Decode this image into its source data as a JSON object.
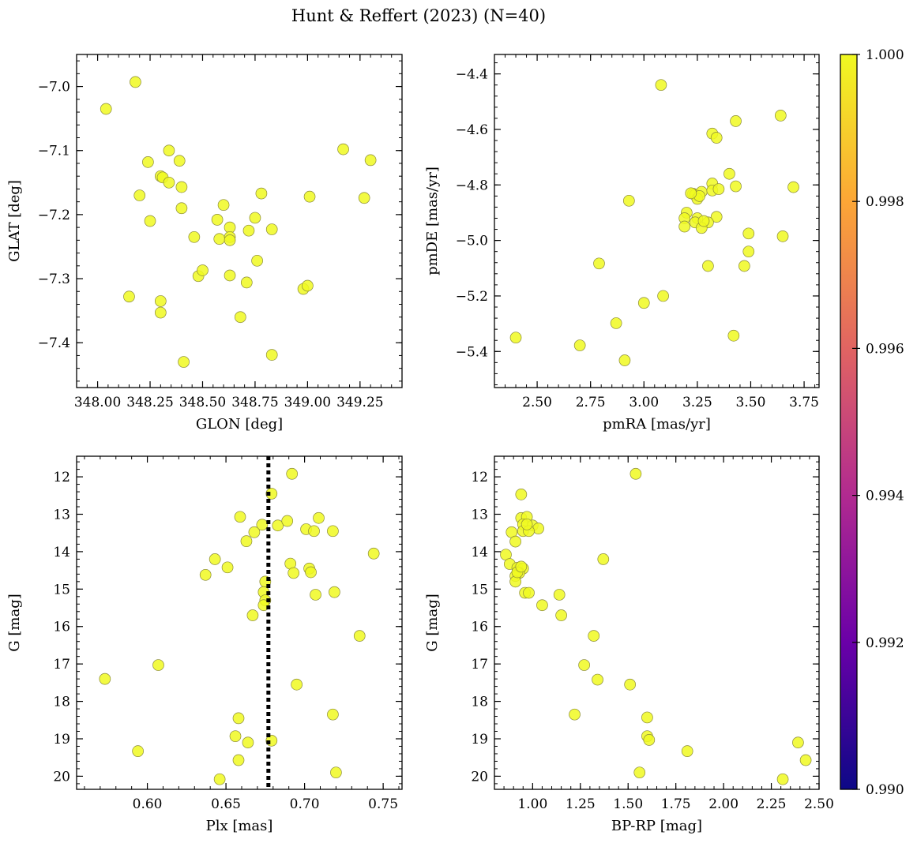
{
  "figure": {
    "title": "Hunt & Reffert (2023) (N=40)"
  },
  "colorbar": {
    "min": 0.99,
    "max": 1.0,
    "ticks": [
      0.99,
      0.992,
      0.994,
      0.996,
      0.998,
      1.0
    ],
    "tick_labels": [
      "0.990",
      "0.992",
      "0.994",
      "0.996",
      "0.998",
      "1.000"
    ],
    "colormap": "plasma"
  },
  "colors": {
    "marker_fill": "#f0f921",
    "marker_edge": "#8a8a3a",
    "axis": "#000000",
    "cmap_stops": [
      "#0d0887",
      "#6a00a8",
      "#b12a90",
      "#e16462",
      "#fca636",
      "#f0f921"
    ]
  },
  "chart_data": [
    {
      "type": "scatter",
      "name": "spatial",
      "xlabel": "GLON [deg]",
      "ylabel": "GLAT [deg]",
      "xlim": [
        347.9,
        349.45
      ],
      "ylim": [
        -7.47,
        -6.95
      ],
      "xticks": [
        348.0,
        348.25,
        348.5,
        348.75,
        349.0,
        349.25
      ],
      "xtick_labels": [
        "348.00",
        "348.25",
        "348.50",
        "348.75",
        "349.00",
        "349.25"
      ],
      "yticks": [
        -7.0,
        -7.1,
        -7.2,
        -7.3,
        -7.4
      ],
      "ytick_labels": [
        "−7.0",
        "−7.1",
        "−7.2",
        "−7.3",
        "−7.4"
      ],
      "invert_y": false,
      "vline": null,
      "points": [
        [
          348.04,
          -7.035
        ],
        [
          348.18,
          -6.993
        ],
        [
          348.2,
          -7.17
        ],
        [
          348.24,
          -7.118
        ],
        [
          348.25,
          -7.21
        ],
        [
          348.3,
          -7.14
        ],
        [
          348.31,
          -7.142
        ],
        [
          348.34,
          -7.1
        ],
        [
          348.34,
          -7.15
        ],
        [
          348.39,
          -7.116
        ],
        [
          348.4,
          -7.157
        ],
        [
          348.4,
          -7.19
        ],
        [
          348.15,
          -7.328
        ],
        [
          348.3,
          -7.335
        ],
        [
          348.3,
          -7.353
        ],
        [
          348.41,
          -7.43
        ],
        [
          348.46,
          -7.235
        ],
        [
          348.48,
          -7.296
        ],
        [
          348.5,
          -7.287
        ],
        [
          348.57,
          -7.208
        ],
        [
          348.58,
          -7.238
        ],
        [
          348.6,
          -7.185
        ],
        [
          348.63,
          -7.22
        ],
        [
          348.63,
          -7.235
        ],
        [
          348.63,
          -7.24
        ],
        [
          348.63,
          -7.295
        ],
        [
          348.68,
          -7.36
        ],
        [
          348.71,
          -7.306
        ],
        [
          348.72,
          -7.225
        ],
        [
          348.75,
          -7.205
        ],
        [
          348.76,
          -7.272
        ],
        [
          348.78,
          -7.167
        ],
        [
          348.83,
          -7.223
        ],
        [
          348.83,
          -7.419
        ],
        [
          348.98,
          -7.316
        ],
        [
          349.0,
          -7.311
        ],
        [
          349.01,
          -7.172
        ],
        [
          349.17,
          -7.098
        ],
        [
          349.27,
          -7.174
        ],
        [
          349.3,
          -7.115
        ]
      ]
    },
    {
      "type": "scatter",
      "name": "proper-motion",
      "xlabel": "pmRA [mas/yr]",
      "ylabel": "pmDE [mas/yr]",
      "xlim": [
        2.3,
        3.82
      ],
      "ylim": [
        -5.53,
        -4.33
      ],
      "xticks": [
        2.5,
        2.75,
        3.0,
        3.25,
        3.5,
        3.75
      ],
      "xtick_labels": [
        "2.50",
        "2.75",
        "3.00",
        "3.25",
        "3.50",
        "3.75"
      ],
      "yticks": [
        -4.4,
        -4.6,
        -4.8,
        -5.0,
        -5.2,
        -5.4
      ],
      "ytick_labels": [
        "−4.4",
        "−4.6",
        "−4.8",
        "−5.0",
        "−5.2",
        "−5.4"
      ],
      "invert_y": false,
      "vline": null,
      "points": [
        [
          3.08,
          -4.44
        ],
        [
          3.64,
          -4.55
        ],
        [
          3.43,
          -4.57
        ],
        [
          3.32,
          -4.615
        ],
        [
          3.34,
          -4.63
        ],
        [
          3.4,
          -4.76
        ],
        [
          3.32,
          -4.795
        ],
        [
          3.43,
          -4.805
        ],
        [
          3.7,
          -4.808
        ],
        [
          3.23,
          -4.832
        ],
        [
          3.24,
          -4.835
        ],
        [
          3.27,
          -4.825
        ],
        [
          3.32,
          -4.82
        ],
        [
          3.35,
          -4.815
        ],
        [
          3.25,
          -4.85
        ],
        [
          2.93,
          -4.857
        ],
        [
          3.2,
          -4.9
        ],
        [
          3.19,
          -4.92
        ],
        [
          3.25,
          -4.92
        ],
        [
          3.34,
          -4.915
        ],
        [
          3.24,
          -4.935
        ],
        [
          3.3,
          -4.935
        ],
        [
          3.19,
          -4.95
        ],
        [
          3.27,
          -4.955
        ],
        [
          3.65,
          -4.985
        ],
        [
          3.49,
          -4.975
        ],
        [
          3.49,
          -5.04
        ],
        [
          3.47,
          -5.092
        ],
        [
          3.3,
          -5.092
        ],
        [
          2.79,
          -5.083
        ],
        [
          3.09,
          -5.2
        ],
        [
          3.0,
          -5.225
        ],
        [
          2.87,
          -5.298
        ],
        [
          3.42,
          -5.343
        ],
        [
          2.4,
          -5.35
        ],
        [
          2.7,
          -5.378
        ],
        [
          2.91,
          -5.432
        ],
        [
          3.26,
          -4.84
        ],
        [
          3.22,
          -4.83
        ],
        [
          3.28,
          -4.93
        ]
      ]
    },
    {
      "type": "scatter",
      "name": "parallax-magnitude",
      "xlabel": "Plx [mas]",
      "ylabel": "G [mag]",
      "xlim": [
        0.555,
        0.762
      ],
      "ylim": [
        20.35,
        11.45
      ],
      "xticks": [
        0.6,
        0.65,
        0.7,
        0.75
      ],
      "xtick_labels": [
        "0.60",
        "0.65",
        "0.70",
        "0.75"
      ],
      "yticks": [
        12,
        13,
        14,
        15,
        16,
        17,
        18,
        19,
        20
      ],
      "ytick_labels": [
        "12",
        "13",
        "14",
        "15",
        "16",
        "17",
        "18",
        "19",
        "20"
      ],
      "invert_y": true,
      "vline": 0.677,
      "points": [
        [
          0.692,
          11.92
        ],
        [
          0.679,
          12.45
        ],
        [
          0.659,
          13.07
        ],
        [
          0.673,
          13.28
        ],
        [
          0.668,
          13.48
        ],
        [
          0.663,
          13.72
        ],
        [
          0.683,
          13.3
        ],
        [
          0.689,
          13.18
        ],
        [
          0.709,
          13.1
        ],
        [
          0.701,
          13.4
        ],
        [
          0.706,
          13.45
        ],
        [
          0.718,
          13.45
        ],
        [
          0.744,
          14.05
        ],
        [
          0.643,
          14.2
        ],
        [
          0.651,
          14.42
        ],
        [
          0.637,
          14.62
        ],
        [
          0.691,
          14.32
        ],
        [
          0.703,
          14.45
        ],
        [
          0.704,
          14.55
        ],
        [
          0.693,
          14.57
        ],
        [
          0.675,
          14.8
        ],
        [
          0.674,
          15.08
        ],
        [
          0.675,
          15.3
        ],
        [
          0.674,
          15.43
        ],
        [
          0.707,
          15.15
        ],
        [
          0.719,
          15.08
        ],
        [
          0.667,
          15.7
        ],
        [
          0.735,
          16.25
        ],
        [
          0.607,
          17.03
        ],
        [
          0.573,
          17.4
        ],
        [
          0.695,
          17.55
        ],
        [
          0.718,
          18.35
        ],
        [
          0.658,
          18.45
        ],
        [
          0.656,
          18.93
        ],
        [
          0.664,
          19.1
        ],
        [
          0.679,
          19.05
        ],
        [
          0.594,
          19.33
        ],
        [
          0.658,
          19.57
        ],
        [
          0.72,
          19.9
        ],
        [
          0.646,
          20.08
        ]
      ]
    },
    {
      "type": "scatter",
      "name": "color-magnitude",
      "xlabel": "BP-RP [mag]",
      "ylabel": "G [mag]",
      "xlim": [
        0.8,
        2.5
      ],
      "ylim": [
        20.35,
        11.45
      ],
      "xticks": [
        1.0,
        1.25,
        1.5,
        1.75,
        2.0,
        2.25,
        2.5
      ],
      "xtick_labels": [
        "1.00",
        "1.25",
        "1.50",
        "1.75",
        "2.00",
        "2.25",
        "2.50"
      ],
      "yticks": [
        12,
        13,
        14,
        15,
        16,
        17,
        18,
        19,
        20
      ],
      "ytick_labels": [
        "12",
        "13",
        "14",
        "15",
        "16",
        "17",
        "18",
        "19",
        "20"
      ],
      "invert_y": true,
      "vline": null,
      "points": [
        [
          1.54,
          11.92
        ],
        [
          0.94,
          12.47
        ],
        [
          0.94,
          13.1
        ],
        [
          0.97,
          13.07
        ],
        [
          0.95,
          13.27
        ],
        [
          1.0,
          13.3
        ],
        [
          1.03,
          13.38
        ],
        [
          0.95,
          13.45
        ],
        [
          0.98,
          13.45
        ],
        [
          0.89,
          13.48
        ],
        [
          0.91,
          13.73
        ],
        [
          0.86,
          14.08
        ],
        [
          0.88,
          14.33
        ],
        [
          0.92,
          14.43
        ],
        [
          0.95,
          14.45
        ],
        [
          0.93,
          14.57
        ],
        [
          0.91,
          14.65
        ],
        [
          0.91,
          14.8
        ],
        [
          0.96,
          15.1
        ],
        [
          0.98,
          15.1
        ],
        [
          1.05,
          15.43
        ],
        [
          1.37,
          14.2
        ],
        [
          1.14,
          15.15
        ],
        [
          1.15,
          15.7
        ],
        [
          1.32,
          16.25
        ],
        [
          1.27,
          17.03
        ],
        [
          1.34,
          17.42
        ],
        [
          1.51,
          17.55
        ],
        [
          1.22,
          18.35
        ],
        [
          1.6,
          18.43
        ],
        [
          1.6,
          18.93
        ],
        [
          1.61,
          19.03
        ],
        [
          1.81,
          19.33
        ],
        [
          2.39,
          19.1
        ],
        [
          2.43,
          19.57
        ],
        [
          1.56,
          19.9
        ],
        [
          2.31,
          20.08
        ],
        [
          0.97,
          13.27
        ],
        [
          0.92,
          14.55
        ],
        [
          0.94,
          14.4
        ]
      ]
    }
  ]
}
